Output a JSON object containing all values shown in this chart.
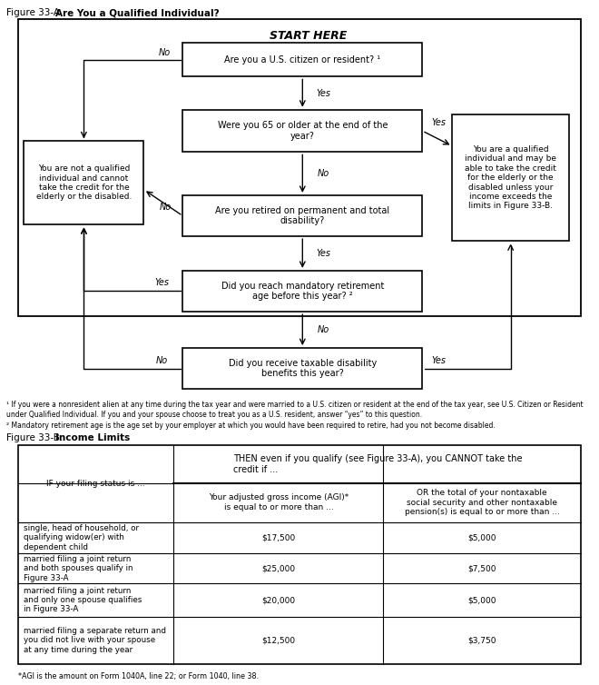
{
  "fig_title_a": "Figure 33-A. ",
  "fig_title_a_bold": "Are You a Qualified Individual?",
  "fig_title_b": "Figure 33-B. ",
  "fig_title_b_bold": "Income Limits",
  "start_label": "START HERE",
  "footnotes": [
    "¹ If you were a nonresident alien at any time during the tax year and were married to a U.S. citizen or resident at the end of the tax year, see U.S. Citizen or Resident under Qualified Individual. If you and your spouse choose to treat you as a U.S. resident, answer “yes” to this question.",
    "² Mandatory retirement age is the age set by your employer at which you would have been required to retire, had you not become disabled."
  ],
  "table": {
    "header_col1": "IF your filing status is ...",
    "header_then": "THEN even if you qualify (see Figure 33-A), you CANNOT take the\ncredit if ...",
    "header_col2": "Your adjusted gross income (AGI)*\nis equal to or more than ...",
    "header_col3": "OR the total of your nontaxable\nsocial security and other nontaxable\npension(s) is equal to or more than ...",
    "rows": [
      {
        "status": "single, head of household, or\nqualifying widow(er) with\ndependent child",
        "agi": "$17,500",
        "other": "$5,000"
      },
      {
        "status": "married filing a joint return\nand both spouses qualify in\nFigure 33-A",
        "agi": "$25,000",
        "other": "$7,500"
      },
      {
        "status": "married filing a joint return\nand only one spouse qualifies\nin Figure 33-A",
        "agi": "$20,000",
        "other": "$5,000"
      },
      {
        "status": "married filing a separate return and\nyou did not live with your spouse\nat any time during the year",
        "agi": "$12,500",
        "other": "$3,750"
      }
    ],
    "footnote": "*AGI is the amount on Form 1040A, line 22; or Form 1040, line 38."
  },
  "colors": {
    "background": "#ffffff",
    "box_border": "#000000",
    "box_fill": "#ffffff",
    "text": "#000000"
  }
}
